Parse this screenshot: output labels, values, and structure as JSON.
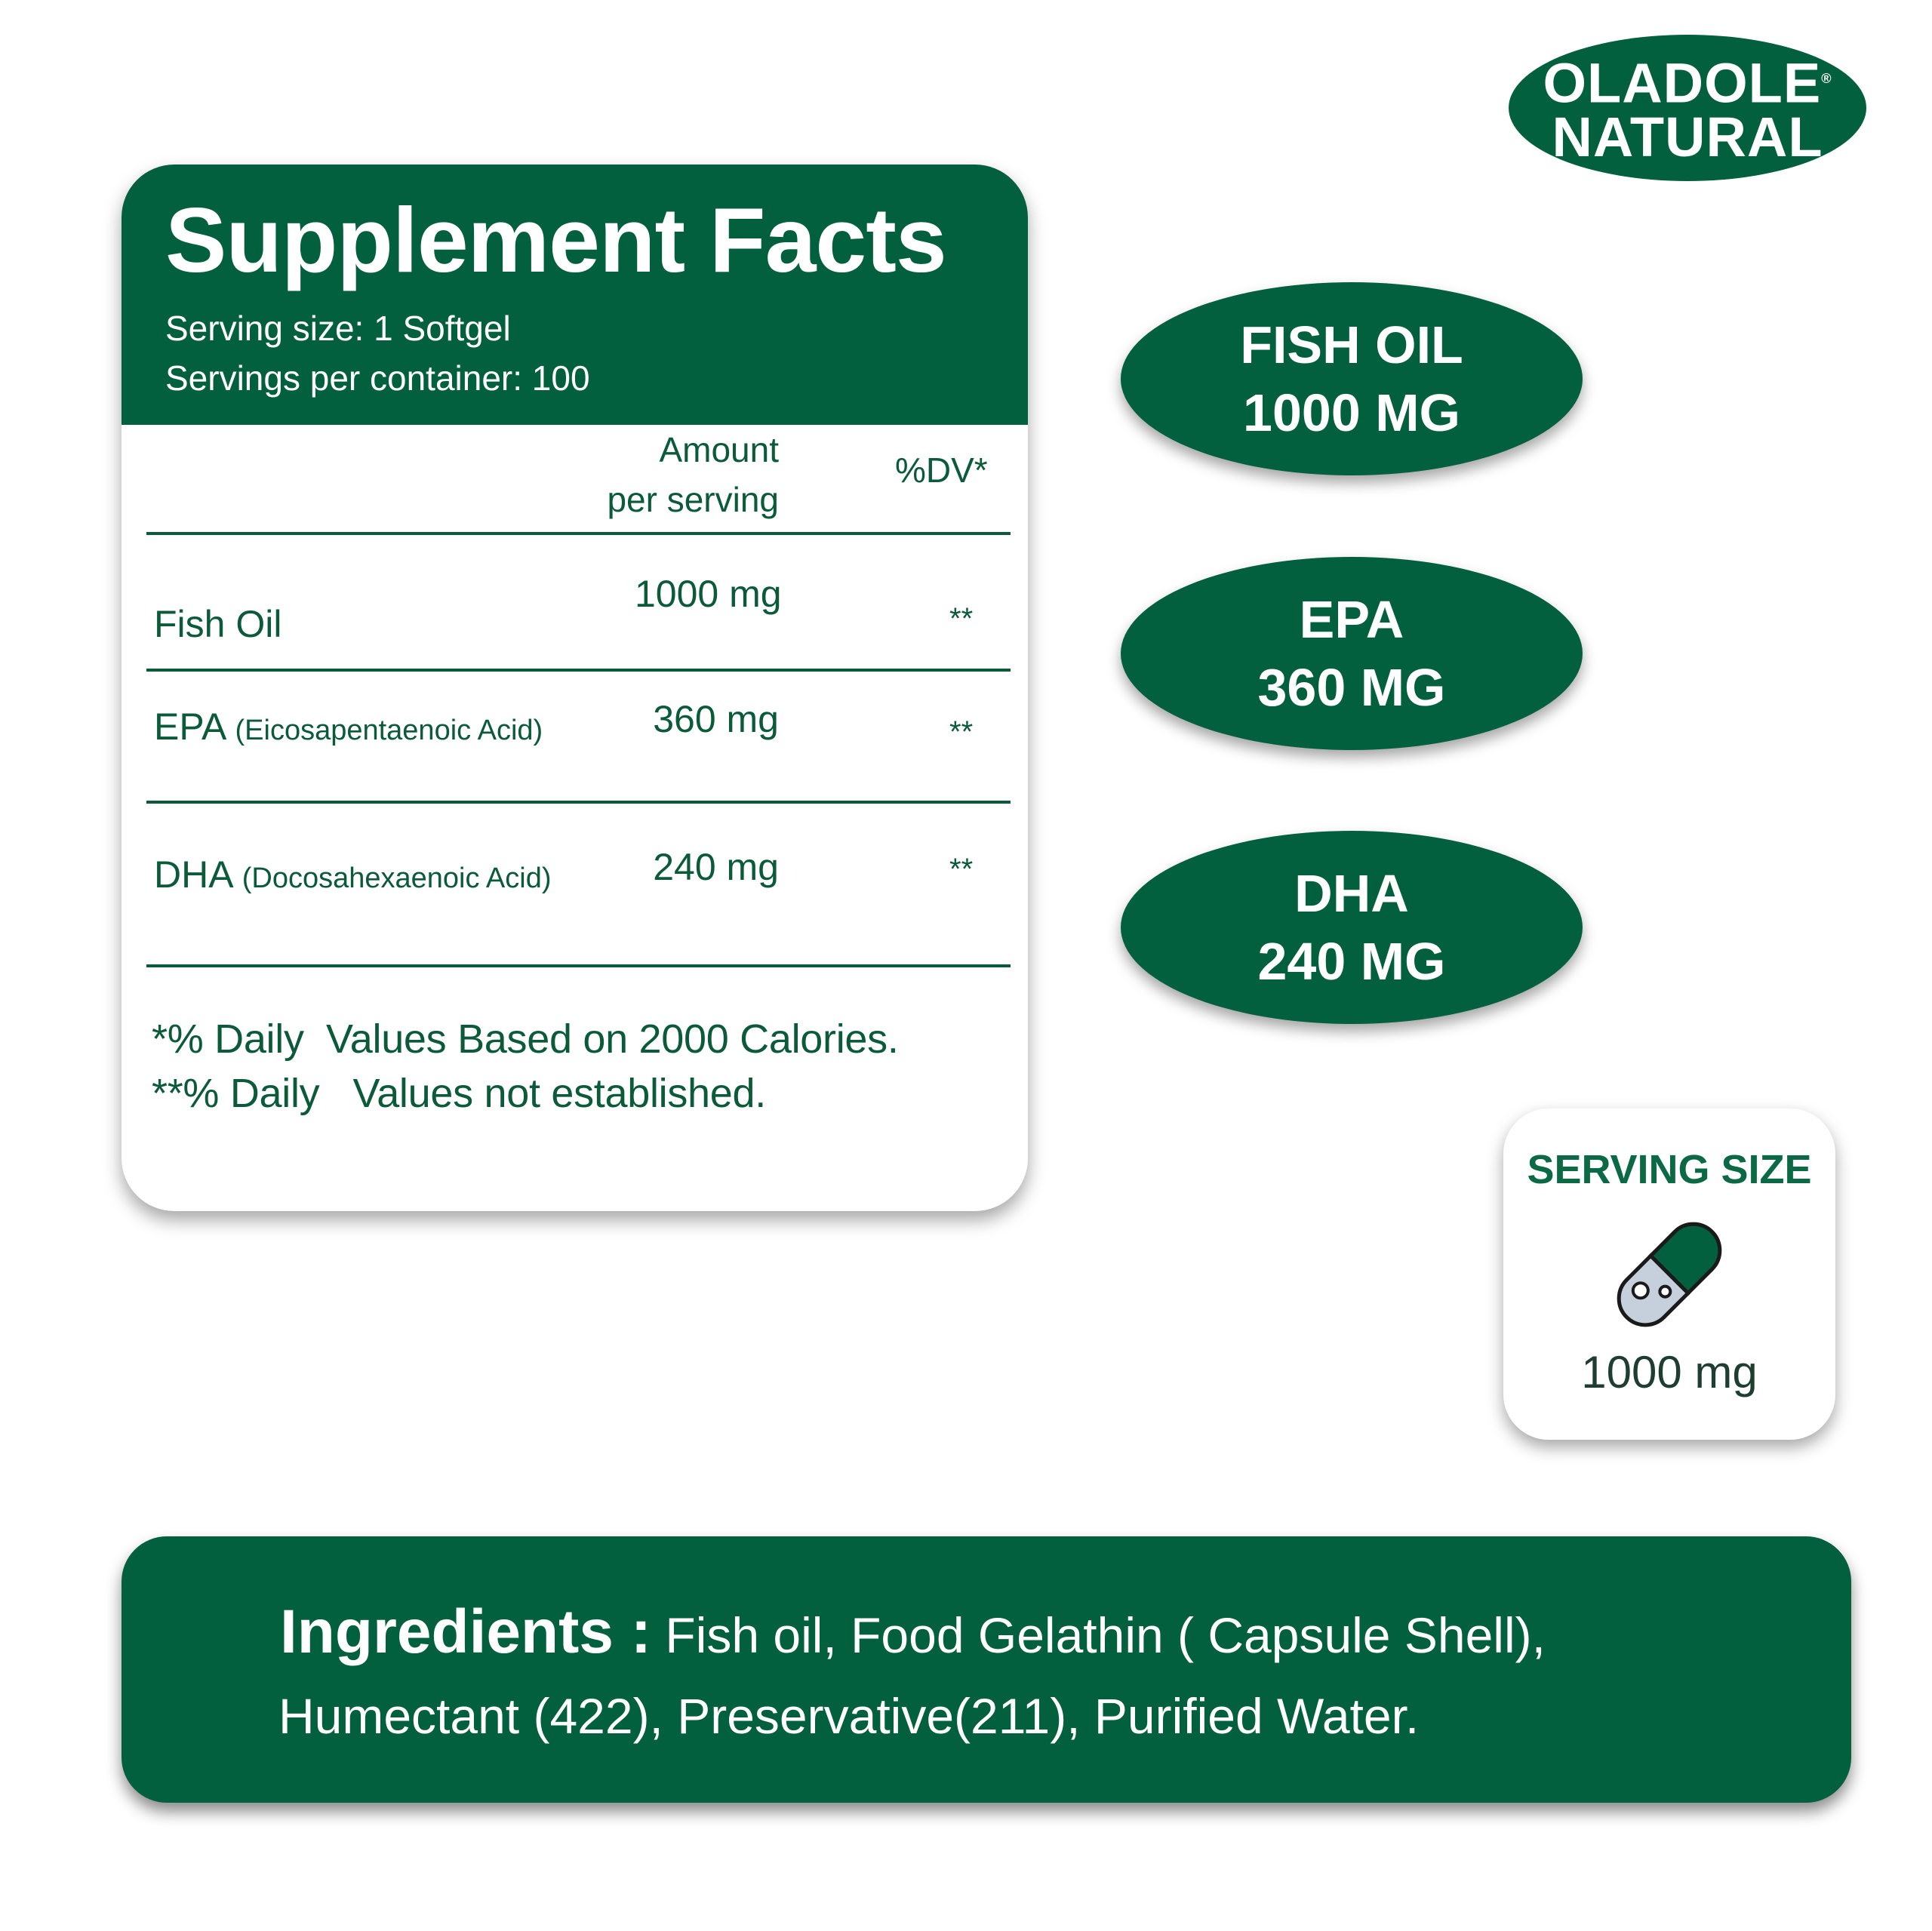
{
  "brand": {
    "line1": "OLADOLE",
    "line2": "NATURAL",
    "mark": "®"
  },
  "facts": {
    "title": "Supplement Facts",
    "serving_size": "Serving size: 1 Softgel",
    "servings_per_container": "Servings per container: 100",
    "col_amount_1": "Amount",
    "col_amount_2": "per serving",
    "col_dv": "%DV*",
    "rows": [
      {
        "name": "Fish Oil",
        "detail": "",
        "amount": "1000 mg",
        "dv": "**"
      },
      {
        "name": "EPA",
        "detail": "(Eicosapentaenoic Acid)",
        "amount": "360 mg",
        "dv": "**"
      },
      {
        "name": "DHA",
        "detail": "(Docosahexaenoic Acid)",
        "amount": "240 mg",
        "dv": "**"
      }
    ],
    "footnote1": "*% Daily  Values Based on 2000 Calories.",
    "footnote2": "**% Daily   Values not established."
  },
  "badges": [
    {
      "line1": "FISH OIL",
      "line2": "1000 MG"
    },
    {
      "line1": "EPA",
      "line2": "360 MG"
    },
    {
      "line1": "DHA",
      "line2": "240 MG"
    }
  ],
  "serving_box": {
    "label": "SERVING SIZE",
    "icon": "capsule-icon",
    "value": "1000 mg"
  },
  "ingredients": {
    "label": "Ingredients :",
    "line1": "Fish oil, Food Gelathin ( Capsule Shell),",
    "line2": "Humectant (422), Preservative(211), Purified Water."
  },
  "colors": {
    "brand_green": "#03603f",
    "text_green": "#0b5a3a"
  }
}
